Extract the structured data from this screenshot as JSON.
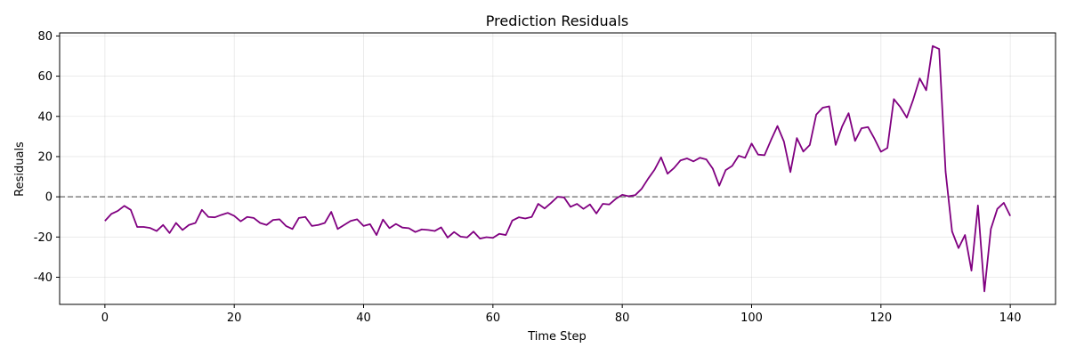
{
  "chart_data": {
    "type": "line",
    "title": "Prediction Residuals",
    "xlabel": "Time Step",
    "ylabel": "Residuals",
    "xlim": [
      -7,
      147
    ],
    "ylim": [
      -53.5,
      81.5
    ],
    "xticks": [
      0,
      20,
      40,
      60,
      80,
      100,
      120,
      140
    ],
    "yticks": [
      -40,
      -20,
      0,
      20,
      40,
      60,
      80
    ],
    "grid": true,
    "reference_line": {
      "y": 0,
      "style": "dashed",
      "color": "#808080"
    },
    "series": [
      {
        "color": "#800080",
        "x": [
          0,
          1,
          2,
          3,
          4,
          5,
          6,
          7,
          8,
          9,
          10,
          11,
          12,
          13,
          14,
          15,
          16,
          17,
          18,
          19,
          20,
          21,
          22,
          23,
          24,
          25,
          26,
          27,
          28,
          29,
          30,
          31,
          32,
          33,
          34,
          35,
          36,
          37,
          38,
          39,
          40,
          41,
          42,
          43,
          44,
          45,
          46,
          47,
          48,
          49,
          50,
          51,
          52,
          53,
          54,
          55,
          56,
          57,
          58,
          59,
          60,
          61,
          62,
          63,
          64,
          65,
          66,
          67,
          68,
          69,
          70,
          71,
          72,
          73,
          74,
          75,
          76,
          77,
          78,
          79,
          80,
          81,
          82,
          83,
          84,
          85,
          86,
          87,
          88,
          89,
          90,
          91,
          92,
          93,
          94,
          95,
          96,
          97,
          98,
          99,
          100,
          101,
          102,
          103,
          104,
          105,
          106,
          107,
          108,
          109,
          110,
          111,
          112,
          113,
          114,
          115,
          116,
          117,
          118,
          119,
          120,
          121,
          122,
          123,
          124,
          125,
          126,
          127,
          128,
          129,
          130,
          131,
          132,
          133,
          134,
          135,
          136,
          137,
          138,
          139,
          140
        ],
        "y": [
          -12,
          -8.5,
          -7,
          -4.5,
          -6.5,
          -15,
          -15,
          -15.5,
          -17,
          -14,
          -18,
          -13,
          -16.5,
          -14,
          -13,
          -6.5,
          -10,
          -10.2,
          -9,
          -8,
          -9.5,
          -12.2,
          -10,
          -10.5,
          -13,
          -14,
          -11.5,
          -11.2,
          -14.5,
          -16,
          -10.5,
          -10,
          -14.5,
          -14,
          -13,
          -7.5,
          -16,
          -14,
          -12,
          -11.2,
          -14.5,
          -13.6,
          -19,
          -11.3,
          -15.6,
          -13.5,
          -15.3,
          -15.6,
          -17.5,
          -16.2,
          -16.5,
          -17,
          -15.2,
          -20.3,
          -17.5,
          -19.8,
          -20.2,
          -17.3,
          -20.8,
          -20.1,
          -20.4,
          -18.4,
          -19,
          -11.8,
          -10.2,
          -10.8,
          -10,
          -3.5,
          -5.8,
          -3,
          0,
          -0.3,
          -5,
          -3.5,
          -6,
          -3.8,
          -8.3,
          -3.5,
          -3.8,
          -1,
          1,
          0.3,
          0.8,
          4,
          9,
          13.5,
          19.6,
          11.5,
          14.3,
          18.1,
          19.1,
          17.6,
          19.4,
          18.6,
          14,
          5.5,
          13.3,
          15.4,
          20.4,
          19.4,
          26.5,
          21,
          20.7,
          28.2,
          35.2,
          27.5,
          12.3,
          29.2,
          22.5,
          25.8,
          40.9,
          44.3,
          45,
          25.8,
          35,
          41.6,
          27.8,
          34.1,
          34.7,
          28.9,
          22.4,
          24.3,
          48.6,
          44.6,
          39.4,
          48.4,
          58.9,
          53,
          75,
          73.5,
          12.5,
          -17.2,
          -25.5,
          -19,
          -36.7,
          -4.3,
          -47,
          -16,
          -6,
          -3,
          -9.5
        ]
      }
    ]
  }
}
